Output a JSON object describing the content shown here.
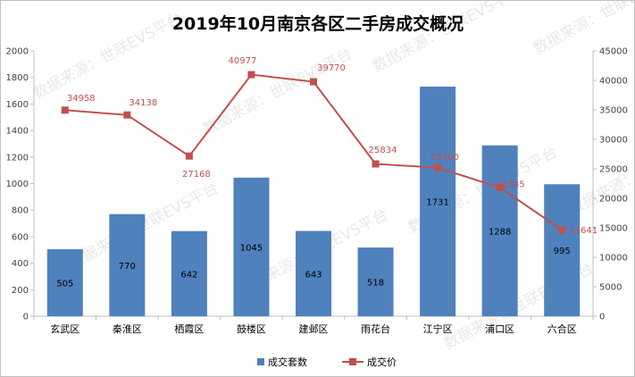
{
  "chart_data": {
    "type": "bar",
    "title": "2019年10月南京各区二手房成交概况",
    "categories": [
      "玄武区",
      "秦淮区",
      "栖霞区",
      "鼓楼区",
      "建邺区",
      "雨花台",
      "江宁区",
      "浦口区",
      "六合区"
    ],
    "series": [
      {
        "name": "成交套数",
        "type": "bar",
        "axis": "left",
        "values": [
          505,
          770,
          642,
          1045,
          643,
          518,
          1731,
          1288,
          995
        ]
      },
      {
        "name": "成交价",
        "type": "line",
        "axis": "right",
        "values": [
          34958,
          34138,
          27168,
          40977,
          39770,
          25834,
          25200,
          21835,
          14641
        ]
      }
    ],
    "y_left": {
      "min": 0,
      "max": 2000,
      "step": 200
    },
    "y_right": {
      "min": 0,
      "max": 45000,
      "step": 5000
    },
    "legend_position": "bottom",
    "grid": false,
    "watermark": "数据来源：世联EVS平台",
    "colors": {
      "bar": "#4f81bd",
      "line": "#c0504d",
      "axis": "#bfbfbf"
    }
  }
}
